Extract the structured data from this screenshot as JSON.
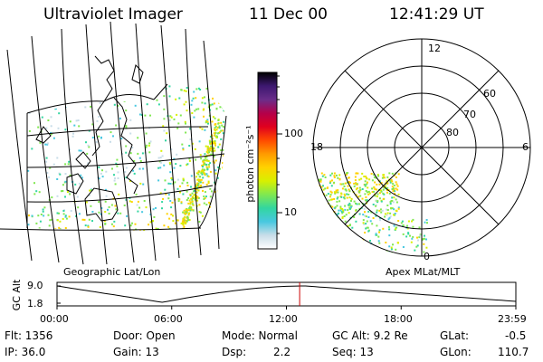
{
  "header": {
    "title": "Ultraviolet Imager",
    "date": "11 Dec 00",
    "time": "12:41:29 UT"
  },
  "colorbar": {
    "label": "photon cm⁻²s⁻¹",
    "ticks": [
      "100",
      "10"
    ],
    "stops": [
      "#000000",
      "#3d1870",
      "#6a2d8a",
      "#b4004a",
      "#e0001e",
      "#ff4a00",
      "#ff9a00",
      "#ffd200",
      "#d8f000",
      "#80e850",
      "#32d6a0",
      "#48c8e0",
      "#c8dde8",
      "#ffffff"
    ]
  },
  "left_map": {
    "label": "Geographic Lat/Lon"
  },
  "polar_plot": {
    "label": "Apex MLat/MLT",
    "lat_labels": [
      "80",
      "70",
      "60"
    ],
    "mlt_labels": [
      "12",
      "18",
      "6",
      "0"
    ]
  },
  "altitude_plot": {
    "ylabel": "GC Alt",
    "ytick_labels": [
      "9.0",
      "1.8"
    ],
    "xtick_labels": [
      "00:00",
      "06:00",
      "12:00",
      "18:00",
      "23:59"
    ],
    "current_time_hours": 12.69
  },
  "status": {
    "flt": "Flt: 1356",
    "ip": "IP: 36.0",
    "door": "Door: Open",
    "gain": "Gain: 13",
    "mode": "Mode: Normal",
    "dsp_label": "Dsp:",
    "dsp_value": "2.2",
    "gc_alt": "GC Alt: 9.2 Re",
    "seq": "Seq: 13",
    "glat_label": "GLat:",
    "glat_value": "-0.5",
    "glon_label": "GLon:",
    "glon_value": "110.7"
  },
  "colors": {
    "axis": "#000000",
    "current_time_marker": "#cc0000"
  }
}
